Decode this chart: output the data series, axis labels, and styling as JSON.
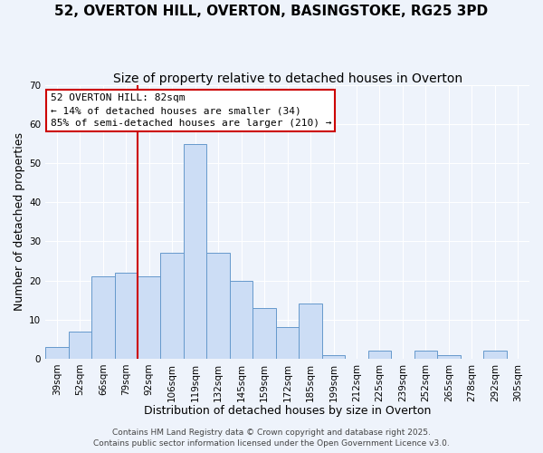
{
  "title": "52, OVERTON HILL, OVERTON, BASINGSTOKE, RG25 3PD",
  "subtitle": "Size of property relative to detached houses in Overton",
  "xlabel": "Distribution of detached houses by size in Overton",
  "ylabel": "Number of detached properties",
  "categories": [
    "39sqm",
    "52sqm",
    "66sqm",
    "79sqm",
    "92sqm",
    "106sqm",
    "119sqm",
    "132sqm",
    "145sqm",
    "159sqm",
    "172sqm",
    "185sqm",
    "199sqm",
    "212sqm",
    "225sqm",
    "239sqm",
    "252sqm",
    "265sqm",
    "278sqm",
    "292sqm",
    "305sqm"
  ],
  "values": [
    3,
    7,
    21,
    22,
    21,
    27,
    55,
    27,
    20,
    13,
    8,
    14,
    1,
    0,
    2,
    0,
    2,
    1,
    0,
    2,
    0
  ],
  "bar_color": "#ccddf5",
  "bar_edge_color": "#6699cc",
  "vline_index": 3,
  "vline_color": "#cc0000",
  "annotation_line1": "52 OVERTON HILL: 82sqm",
  "annotation_line2": "← 14% of detached houses are smaller (34)",
  "annotation_line3": "85% of semi-detached houses are larger (210) →",
  "annotation_box_facecolor": "#ffffff",
  "annotation_box_edgecolor": "#cc0000",
  "ylim": [
    0,
    70
  ],
  "yticks": [
    0,
    10,
    20,
    30,
    40,
    50,
    60,
    70
  ],
  "footer1": "Contains HM Land Registry data © Crown copyright and database right 2025.",
  "footer2": "Contains public sector information licensed under the Open Government Licence v3.0.",
  "background_color": "#eef3fb",
  "grid_color": "#ffffff",
  "title_fontsize": 11,
  "subtitle_fontsize": 10,
  "xlabel_fontsize": 9,
  "ylabel_fontsize": 9,
  "tick_fontsize": 7.5,
  "annotation_fontsize": 8,
  "footer_fontsize": 6.5
}
